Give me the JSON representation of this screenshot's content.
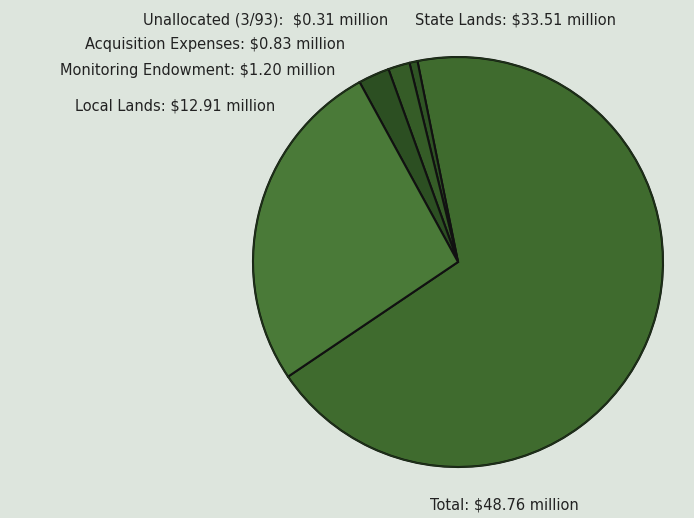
{
  "chart_data": {
    "type": "pie",
    "categories": [
      "State Lands: $33.51 million",
      "Unallocated (3/93):  $0.31 million",
      "Acquisition Expenses: $0.83 million",
      "Monitoring Endowment: $1.20 million",
      "Local Lands: $12.91 million"
    ],
    "values": [
      33.51,
      0.31,
      0.83,
      1.2,
      12.91
    ],
    "colors": [
      "#3f6b2e",
      "#2f5424",
      "#355c27",
      "#2c4f22",
      "#4a7a38"
    ],
    "annotations": [
      "Total: $48.76 million"
    ]
  }
}
